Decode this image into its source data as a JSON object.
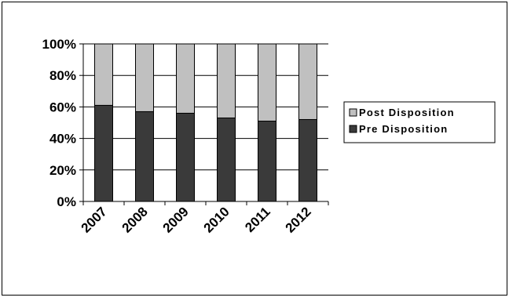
{
  "chart_data": {
    "type": "bar",
    "stacked": true,
    "categories": [
      "2007",
      "2008",
      "2009",
      "2010",
      "2011",
      "2012"
    ],
    "series": [
      {
        "name": "Pre Disposition",
        "values": [
          61,
          57,
          56,
          53,
          51,
          52
        ],
        "color": "#3a3a3a"
      },
      {
        "name": "Post Disposition",
        "values": [
          39,
          43,
          44,
          47,
          49,
          48
        ],
        "color": "#c0c0c0"
      }
    ],
    "y_ticks": [
      "0%",
      "20%",
      "40%",
      "60%",
      "80%",
      "100%"
    ],
    "ylim": [
      0,
      100
    ],
    "y_unit": "%",
    "grid": true,
    "legend_position": "right",
    "legend_order": [
      "Post Disposition",
      "Pre Disposition"
    ],
    "title": "",
    "xlabel": "",
    "ylabel": ""
  }
}
